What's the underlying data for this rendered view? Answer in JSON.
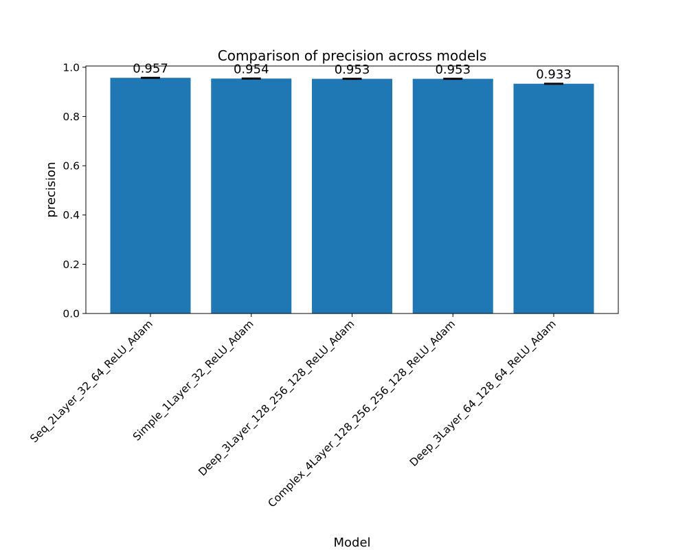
{
  "chart_data": {
    "type": "bar",
    "title": "Comparison of precision across models",
    "xlabel": "Model",
    "ylabel": "precision",
    "categories": [
      "Seq_2Layer_32_64_ReLU_Adam",
      "Simple_1Layer_32_ReLU_Adam",
      "Deep_3Layer_128_256_128_ReLU_Adam",
      "Complex_4Layer_128_256_256_128_ReLU_Adam",
      "Deep_3Layer_64_128_64_ReLU_Adam"
    ],
    "values": [
      0.957,
      0.954,
      0.953,
      0.953,
      0.933
    ],
    "data_labels": [
      "0.957",
      "0.954",
      "0.953",
      "0.953",
      "0.933"
    ],
    "error": [
      0.002,
      0.002,
      0.002,
      0.002,
      0.002
    ],
    "ylim": [
      0,
      1.005
    ],
    "yticks": [
      0.0,
      0.2,
      0.4,
      0.6,
      0.8,
      1.0
    ],
    "ytick_labels": [
      "0.0",
      "0.2",
      "0.4",
      "0.6",
      "0.8",
      "1.0"
    ],
    "grid": false,
    "bar_color": "#1f77b4",
    "error_color": "#000000"
  }
}
